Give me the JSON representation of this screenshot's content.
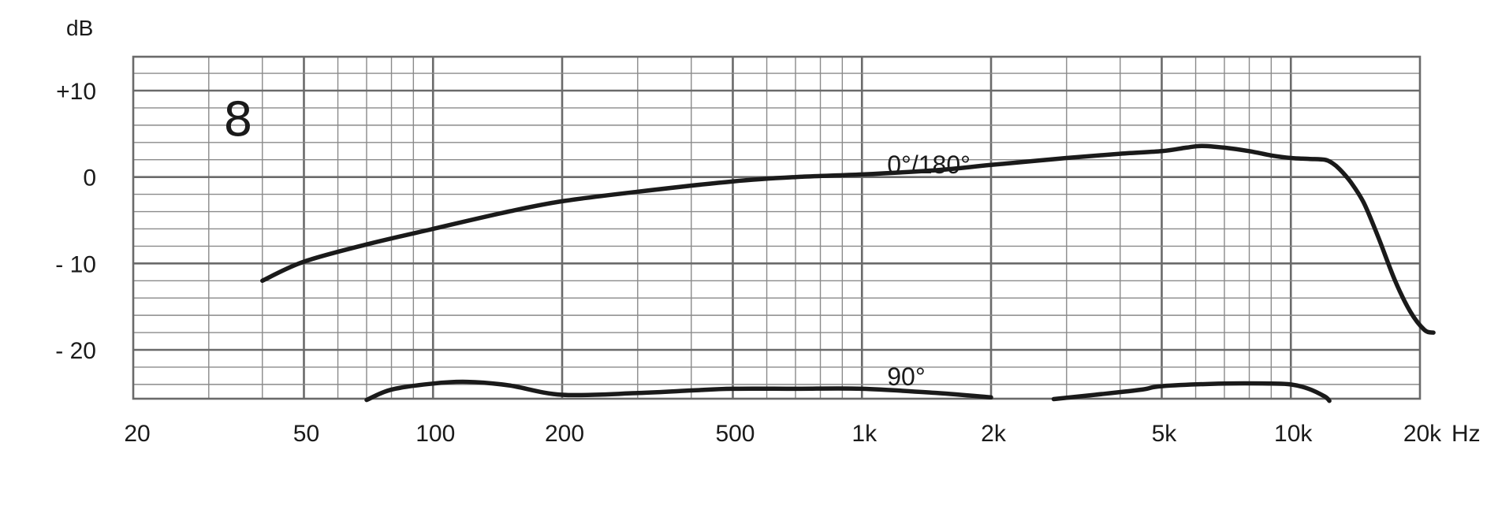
{
  "chart_data": {
    "type": "line",
    "pattern_symbol": "8",
    "y_unit": "dB",
    "x_unit": "Hz",
    "x_scale": "log",
    "xlim": [
      20,
      25000
    ],
    "ylim": [
      -26,
      14
    ],
    "grid": true,
    "x_tick_values": [
      20,
      50,
      100,
      200,
      500,
      1000,
      2000,
      5000,
      10000,
      20000
    ],
    "x_tick_labels": [
      "20",
      "50",
      "100",
      "200",
      "500",
      "1k",
      "2k",
      "5k",
      "10k",
      "20k"
    ],
    "y_tick_values": [
      10,
      0,
      -10,
      -20
    ],
    "y_tick_labels": [
      "+10",
      "0",
      "- 10",
      "- 20"
    ],
    "series": [
      {
        "name": "0°/180°",
        "color": "#1a1a1a",
        "label_at": [
          1000,
          1.5
        ],
        "segments": [
          [
            [
              40,
              -12
            ],
            [
              50,
              -9.8
            ],
            [
              70,
              -7.8
            ],
            [
              100,
              -6
            ],
            [
              150,
              -4
            ],
            [
              200,
              -2.8
            ],
            [
              300,
              -1.7
            ],
            [
              500,
              -0.5
            ],
            [
              700,
              0
            ],
            [
              1000,
              0.3
            ],
            [
              1500,
              0.8
            ],
            [
              2000,
              1.4
            ],
            [
              3000,
              2.2
            ],
            [
              4000,
              2.7
            ],
            [
              5000,
              3
            ],
            [
              5700,
              3.4
            ],
            [
              6200,
              3.6
            ],
            [
              7000,
              3.4
            ],
            [
              8000,
              3
            ],
            [
              9000,
              2.5
            ],
            [
              10000,
              2.2
            ],
            [
              11000,
              2.1
            ],
            [
              12000,
              2.0
            ],
            [
              12500,
              1.6
            ],
            [
              13000,
              0.9
            ],
            [
              13800,
              -0.6
            ],
            [
              14800,
              -3.0
            ],
            [
              16000,
              -7.0
            ],
            [
              17500,
              -12.0
            ],
            [
              19000,
              -15.6
            ],
            [
              20500,
              -17.7
            ],
            [
              21500,
              -18.0
            ]
          ]
        ]
      },
      {
        "name": "90°",
        "color": "#1a1a1a",
        "label_at": [
          1000,
          -23
        ],
        "segments": [
          [
            [
              70,
              -25.8
            ],
            [
              80,
              -24.6
            ],
            [
              100,
              -23.9
            ],
            [
              120,
              -23.7
            ],
            [
              150,
              -24.1
            ],
            [
              200,
              -25.2
            ],
            [
              300,
              -25.0
            ],
            [
              400,
              -24.7
            ],
            [
              500,
              -24.5
            ],
            [
              700,
              -24.5
            ],
            [
              1000,
              -24.5
            ],
            [
              1500,
              -25.0
            ],
            [
              2000,
              -25.5
            ]
          ],
          [
            [
              2800,
              -25.7
            ],
            [
              3500,
              -25.2
            ],
            [
              4500,
              -24.6
            ],
            [
              5000,
              -24.2
            ],
            [
              7000,
              -23.9
            ],
            [
              9000,
              -23.9
            ],
            [
              10000,
              -24.0
            ],
            [
              11000,
              -24.5
            ],
            [
              12000,
              -25.4
            ],
            [
              12300,
              -25.9
            ]
          ]
        ]
      }
    ]
  }
}
